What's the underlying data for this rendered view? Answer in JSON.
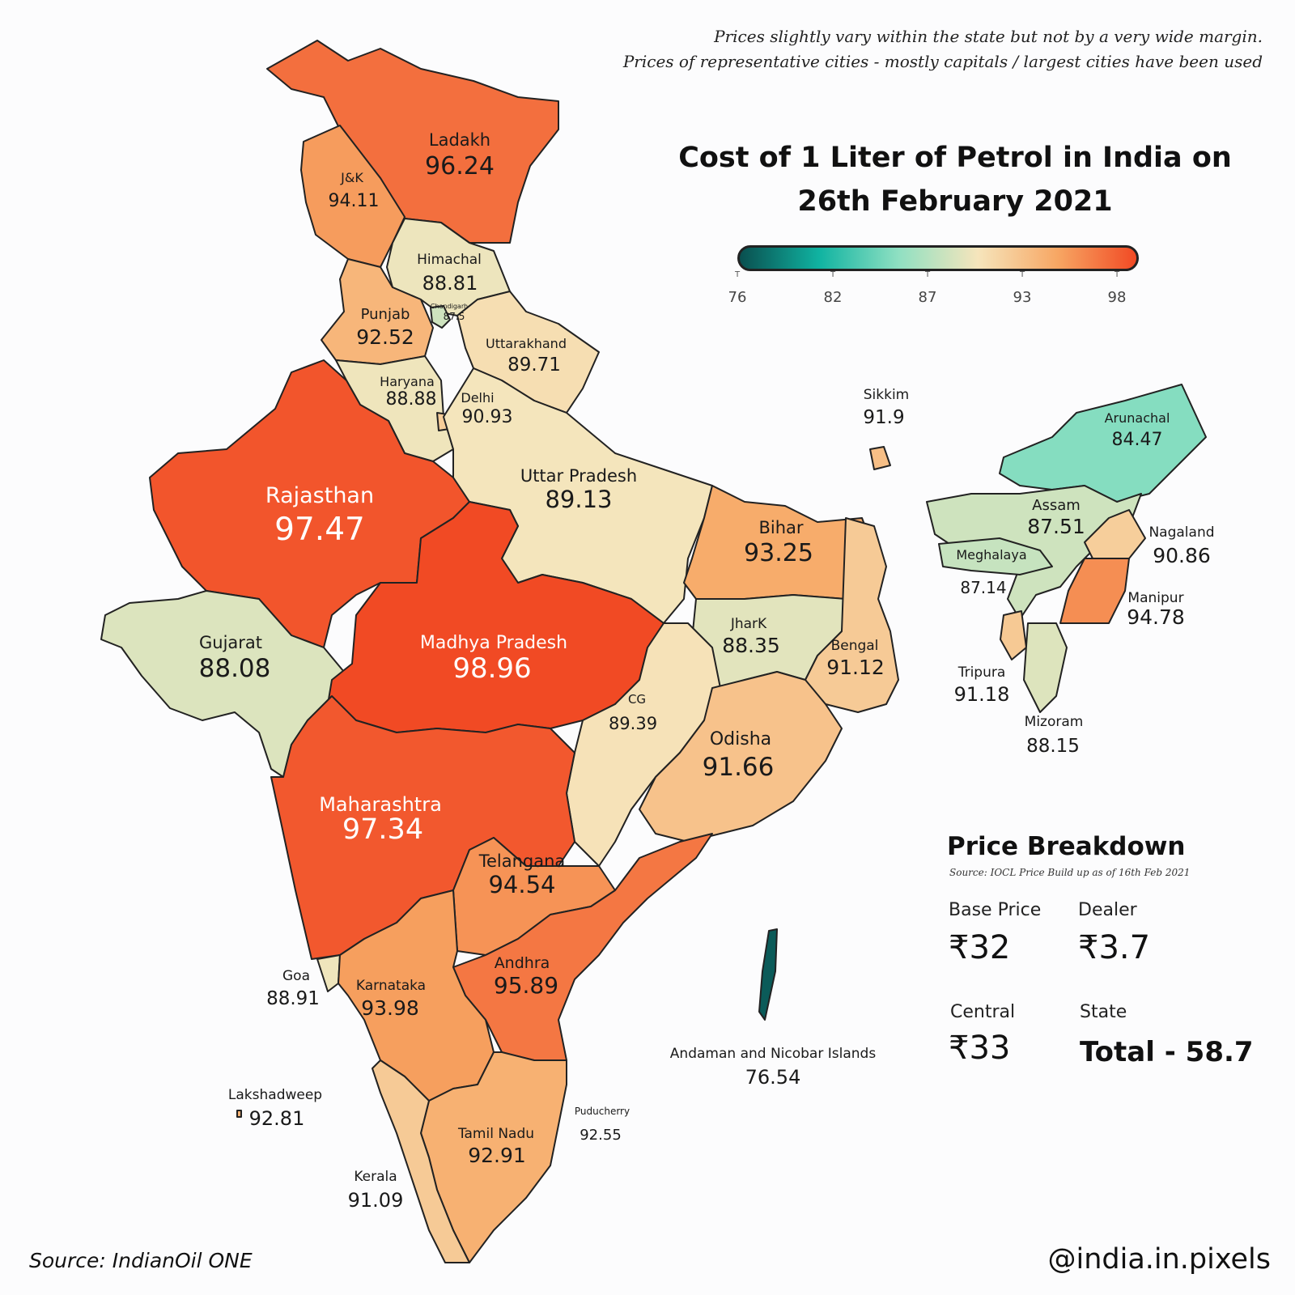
{
  "note_lines": [
    "Prices slightly vary within the state but not by a very wide margin.",
    "Prices of representative cities - mostly capitals / largest cities have been used"
  ],
  "title_lines": [
    "Cost of 1 Liter of Petrol in India on",
    "26th February 2021"
  ],
  "legend": {
    "ticks": [
      "76",
      "82",
      "87",
      "93",
      "98"
    ],
    "min": 76,
    "max": 98,
    "colors": [
      "#0a4f4f",
      "#10b3a1",
      "#8fe0c2",
      "#f6e5bc",
      "#f7a764",
      "#f14a24"
    ]
  },
  "regions": [
    {
      "name": "Ladakh",
      "value": "96.24"
    },
    {
      "name": "J&K",
      "value": "94.11"
    },
    {
      "name": "Himachal",
      "value": "88.81"
    },
    {
      "name": "Punjab",
      "value": "92.52"
    },
    {
      "name": "Chandigarh",
      "value": "87.5"
    },
    {
      "name": "Uttarakhand",
      "value": "89.71"
    },
    {
      "name": "Haryana",
      "value": "88.88"
    },
    {
      "name": "Delhi",
      "value": "90.93"
    },
    {
      "name": "Rajasthan",
      "value": "97.47"
    },
    {
      "name": "Uttar Pradesh",
      "value": "89.13"
    },
    {
      "name": "Sikkim",
      "value": "91.9"
    },
    {
      "name": "Arunachal",
      "value": "84.47"
    },
    {
      "name": "Assam",
      "value": "87.51"
    },
    {
      "name": "Nagaland",
      "value": "90.86"
    },
    {
      "name": "Meghalaya",
      "value": "87.14"
    },
    {
      "name": "Manipur",
      "value": "94.78"
    },
    {
      "name": "Bihar",
      "value": "93.25"
    },
    {
      "name": "Gujarat",
      "value": "88.08"
    },
    {
      "name": "Madhya Pradesh",
      "value": "98.96"
    },
    {
      "name": "JharK",
      "value": "88.35"
    },
    {
      "name": "Bengal",
      "value": "91.12"
    },
    {
      "name": "Tripura",
      "value": "91.18"
    },
    {
      "name": "Mizoram",
      "value": "88.15"
    },
    {
      "name": "CG",
      "value": "89.39"
    },
    {
      "name": "Odisha",
      "value": "91.66"
    },
    {
      "name": "Maharashtra",
      "value": "97.34"
    },
    {
      "name": "Telangana",
      "value": "94.54"
    },
    {
      "name": "Andhra",
      "value": "95.89"
    },
    {
      "name": "Goa",
      "value": "88.91"
    },
    {
      "name": "Karnataka",
      "value": "93.98"
    },
    {
      "name": "Andaman and Nicobar Islands",
      "value": "76.54"
    },
    {
      "name": "Lakshadweep",
      "value": "92.81"
    },
    {
      "name": "Puducherry",
      "value": "92.55"
    },
    {
      "name": "Tamil Nadu",
      "value": "92.91"
    },
    {
      "name": "Kerala",
      "value": "91.09"
    }
  ],
  "breakdown": {
    "title": "Price Breakdown",
    "source": "Source: IOCL Price Build up as of 16th Feb 2021",
    "base_label": "Base Price",
    "base_value": "₹32",
    "dealer_label": "Dealer",
    "dealer_value": "₹3.7",
    "central_label": "Central",
    "central_value": "₹33",
    "state_label": "State",
    "state_value": "Total - 58.7"
  },
  "footer": {
    "source": "Source: IndianOil ONE",
    "credit": "@india.in.pixels"
  }
}
